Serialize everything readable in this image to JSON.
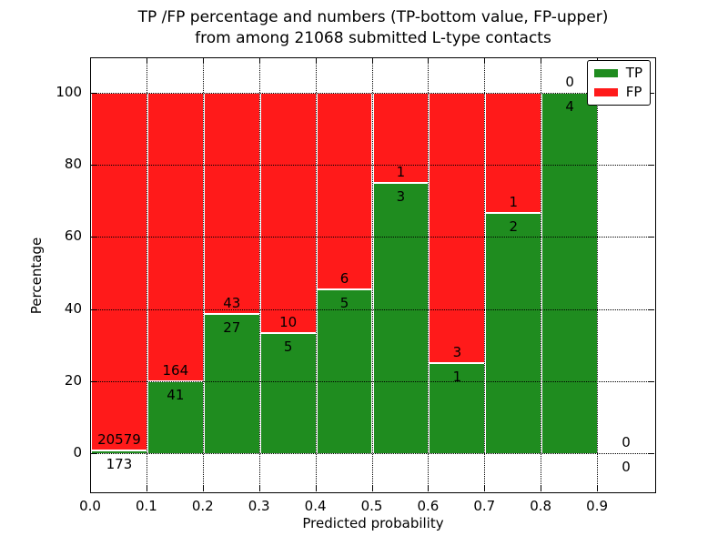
{
  "chart_data": {
    "type": "bar",
    "stacked": true,
    "title_lines": [
      "TP /FP percentage and numbers (TP-bottom value, FP-upper)",
      "from among 21068 submitted L-type contacts"
    ],
    "xlabel": "Predicted probability",
    "ylabel": "Percentage",
    "xlim": [
      0.0,
      1.0
    ],
    "ylim": [
      -10.5,
      109.5
    ],
    "x_ticks": [
      "0.0",
      "0.1",
      "0.2",
      "0.3",
      "0.4",
      "0.5",
      "0.6",
      "0.7",
      "0.8",
      "0.9"
    ],
    "y_ticks": [
      "0",
      "20",
      "40",
      "60",
      "80",
      "100"
    ],
    "grid": true,
    "grid_style": "dotted-black-over-bars",
    "bar_edge_color": "#ffffff",
    "bin_width": 0.1,
    "bin_starts": [
      0.0,
      0.1,
      0.2,
      0.3,
      0.4,
      0.5,
      0.6,
      0.7,
      0.8,
      0.9
    ],
    "series": [
      {
        "name": "TP",
        "color": "#1f8c1f",
        "counts": [
          173,
          41,
          27,
          5,
          5,
          3,
          1,
          2,
          4,
          0
        ]
      },
      {
        "name": "FP",
        "color": "#ff1a1a",
        "counts": [
          20579,
          164,
          43,
          10,
          6,
          1,
          3,
          1,
          0,
          0
        ]
      }
    ],
    "tp_percent_of_bin": [
      0.83,
      20.0,
      38.57,
      33.33,
      45.45,
      75.0,
      25.0,
      66.67,
      100.0,
      0.0
    ],
    "annotation_rule": "FP count printed just above green/red boundary, TP count just below",
    "legend": {
      "position": "upper right",
      "entries": [
        {
          "label": "TP",
          "color": "#1f8c1f"
        },
        {
          "label": "FP",
          "color": "#ff1a1a"
        }
      ]
    }
  }
}
